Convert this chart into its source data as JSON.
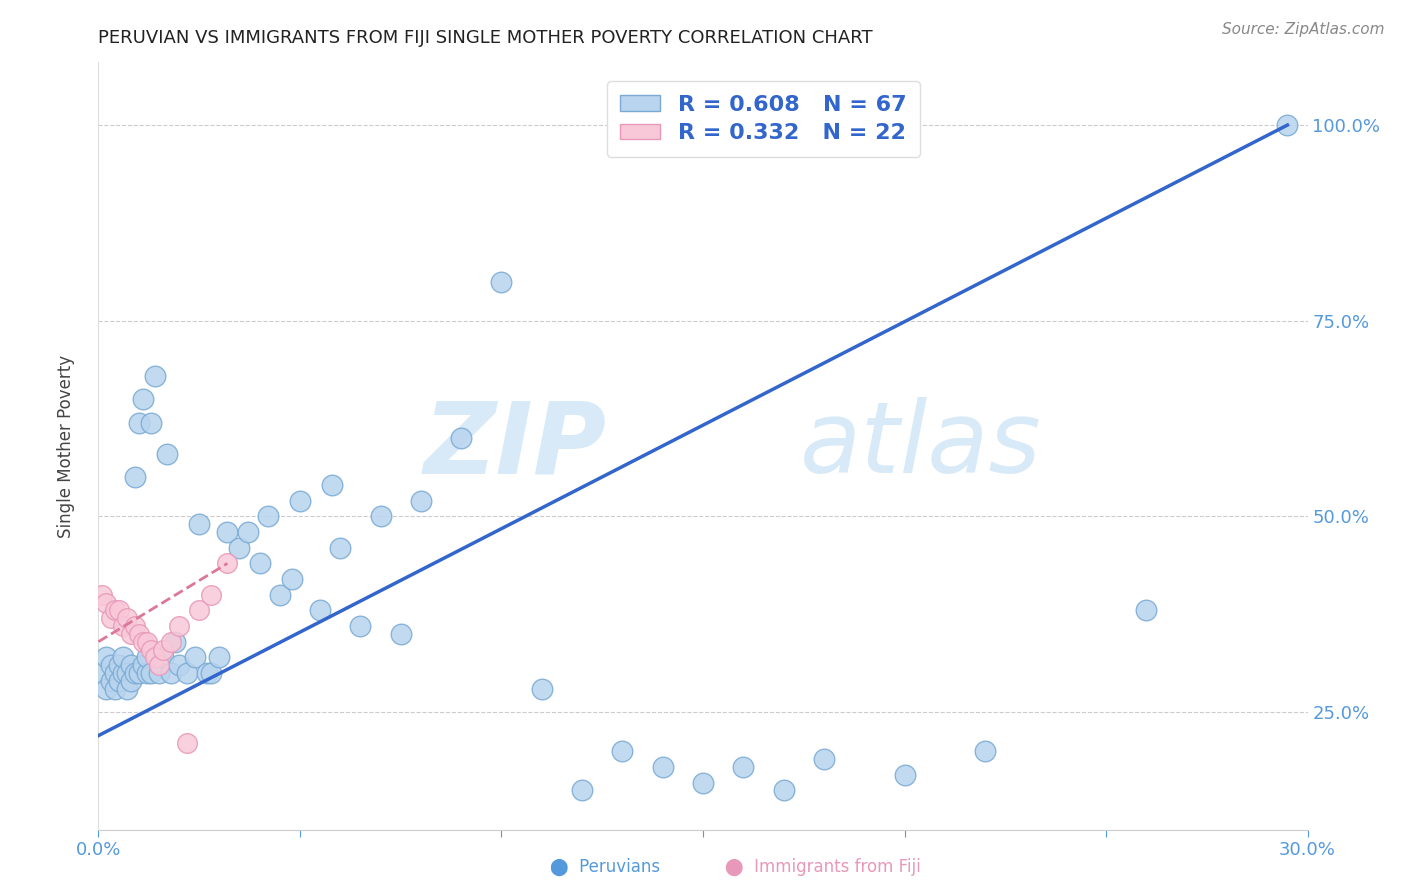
{
  "title": "PERUVIAN VS IMMIGRANTS FROM FIJI SINGLE MOTHER POVERTY CORRELATION CHART",
  "source": "Source: ZipAtlas.com",
  "ylabel": "Single Mother Poverty",
  "ytick_labels": [
    "25.0%",
    "50.0%",
    "75.0%",
    "100.0%"
  ],
  "ytick_values": [
    0.25,
    0.5,
    0.75,
    1.0
  ],
  "xlim": [
    0.0,
    0.3
  ],
  "ylim": [
    0.1,
    1.08
  ],
  "blue_R": 0.608,
  "blue_N": 67,
  "pink_R": 0.332,
  "pink_N": 22,
  "blue_color": "#b8d4ee",
  "blue_edge": "#7aaad4",
  "pink_color": "#f8c8d8",
  "pink_edge": "#e898b8",
  "blue_line_color": "#3366cc",
  "pink_line_color": "#dd7799",
  "legend_text_color": "#3366cc",
  "axis_color": "#5599dd",
  "watermark_color": "#d8eaf8",
  "blue_x": [
    0.001,
    0.002,
    0.002,
    0.003,
    0.003,
    0.004,
    0.004,
    0.005,
    0.005,
    0.006,
    0.006,
    0.007,
    0.007,
    0.008,
    0.008,
    0.009,
    0.009,
    0.01,
    0.01,
    0.011,
    0.011,
    0.012,
    0.012,
    0.013,
    0.013,
    0.014,
    0.015,
    0.016,
    0.017,
    0.018,
    0.019,
    0.02,
    0.022,
    0.024,
    0.025,
    0.027,
    0.028,
    0.03,
    0.032,
    0.035,
    0.037,
    0.04,
    0.042,
    0.045,
    0.048,
    0.05,
    0.055,
    0.058,
    0.06,
    0.065,
    0.07,
    0.075,
    0.08,
    0.09,
    0.1,
    0.11,
    0.12,
    0.13,
    0.14,
    0.15,
    0.16,
    0.17,
    0.18,
    0.2,
    0.22,
    0.26,
    0.295
  ],
  "blue_y": [
    0.3,
    0.28,
    0.32,
    0.29,
    0.31,
    0.3,
    0.28,
    0.31,
    0.29,
    0.3,
    0.32,
    0.3,
    0.28,
    0.31,
    0.29,
    0.3,
    0.55,
    0.62,
    0.3,
    0.31,
    0.65,
    0.3,
    0.32,
    0.3,
    0.62,
    0.68,
    0.3,
    0.32,
    0.58,
    0.3,
    0.34,
    0.31,
    0.3,
    0.32,
    0.49,
    0.3,
    0.3,
    0.32,
    0.48,
    0.46,
    0.48,
    0.44,
    0.5,
    0.4,
    0.42,
    0.52,
    0.38,
    0.54,
    0.46,
    0.36,
    0.5,
    0.35,
    0.52,
    0.6,
    0.8,
    0.28,
    0.15,
    0.2,
    0.18,
    0.16,
    0.18,
    0.15,
    0.19,
    0.17,
    0.2,
    0.38,
    1.0
  ],
  "pink_x": [
    0.001,
    0.002,
    0.003,
    0.004,
    0.005,
    0.006,
    0.007,
    0.008,
    0.009,
    0.01,
    0.011,
    0.012,
    0.013,
    0.014,
    0.015,
    0.016,
    0.018,
    0.02,
    0.022,
    0.025,
    0.028,
    0.032
  ],
  "pink_y": [
    0.4,
    0.39,
    0.37,
    0.38,
    0.38,
    0.36,
    0.37,
    0.35,
    0.36,
    0.35,
    0.34,
    0.34,
    0.33,
    0.32,
    0.31,
    0.33,
    0.34,
    0.36,
    0.21,
    0.38,
    0.4,
    0.44
  ],
  "blue_line_x": [
    0.0,
    0.295
  ],
  "blue_line_y": [
    0.22,
    1.0
  ],
  "pink_line_x": [
    0.0,
    0.032
  ],
  "pink_line_y": [
    0.34,
    0.44
  ]
}
